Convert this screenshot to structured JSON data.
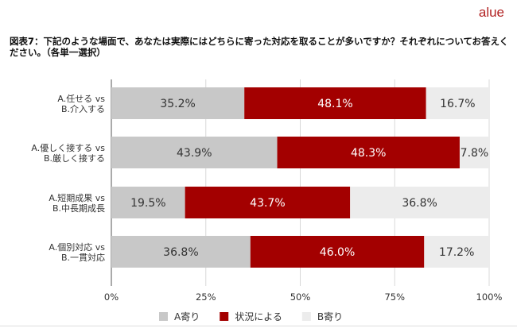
{
  "logo": "alue",
  "title": "図表7：下記のような場面で、あなたは実際にはどちらに寄った対応を取ることが多いですか？それぞれについてお答えください。（各単一選択）",
  "chart_data": {
    "type": "bar",
    "stacked": true,
    "orientation": "horizontal",
    "categories": [
      [
        "A.任せる vs",
        "B.介入する"
      ],
      [
        "A.優しく接する vs",
        "B.厳しく接する"
      ],
      [
        "A.短期成果 vs",
        "B.中長期成長"
      ],
      [
        "A.個別対応 vs",
        "B.一貫対応"
      ]
    ],
    "series": [
      {
        "name": "A寄り",
        "values": [
          35.2,
          43.9,
          19.5,
          36.8
        ],
        "color": "#c8c8c8",
        "label_color": "#333333"
      },
      {
        "name": "状況による",
        "values": [
          48.1,
          48.3,
          43.7,
          46.0
        ],
        "color": "#a30000",
        "label_color": "#ffffff"
      },
      {
        "name": "B寄り",
        "values": [
          16.7,
          7.8,
          36.8,
          17.2
        ],
        "color": "#ececec",
        "label_color": "#333333"
      }
    ],
    "xlim": [
      0,
      100
    ],
    "xticks": [
      "0%",
      "25%",
      "50%",
      "75%",
      "100%"
    ],
    "grid": true,
    "legend": "bottom"
  }
}
